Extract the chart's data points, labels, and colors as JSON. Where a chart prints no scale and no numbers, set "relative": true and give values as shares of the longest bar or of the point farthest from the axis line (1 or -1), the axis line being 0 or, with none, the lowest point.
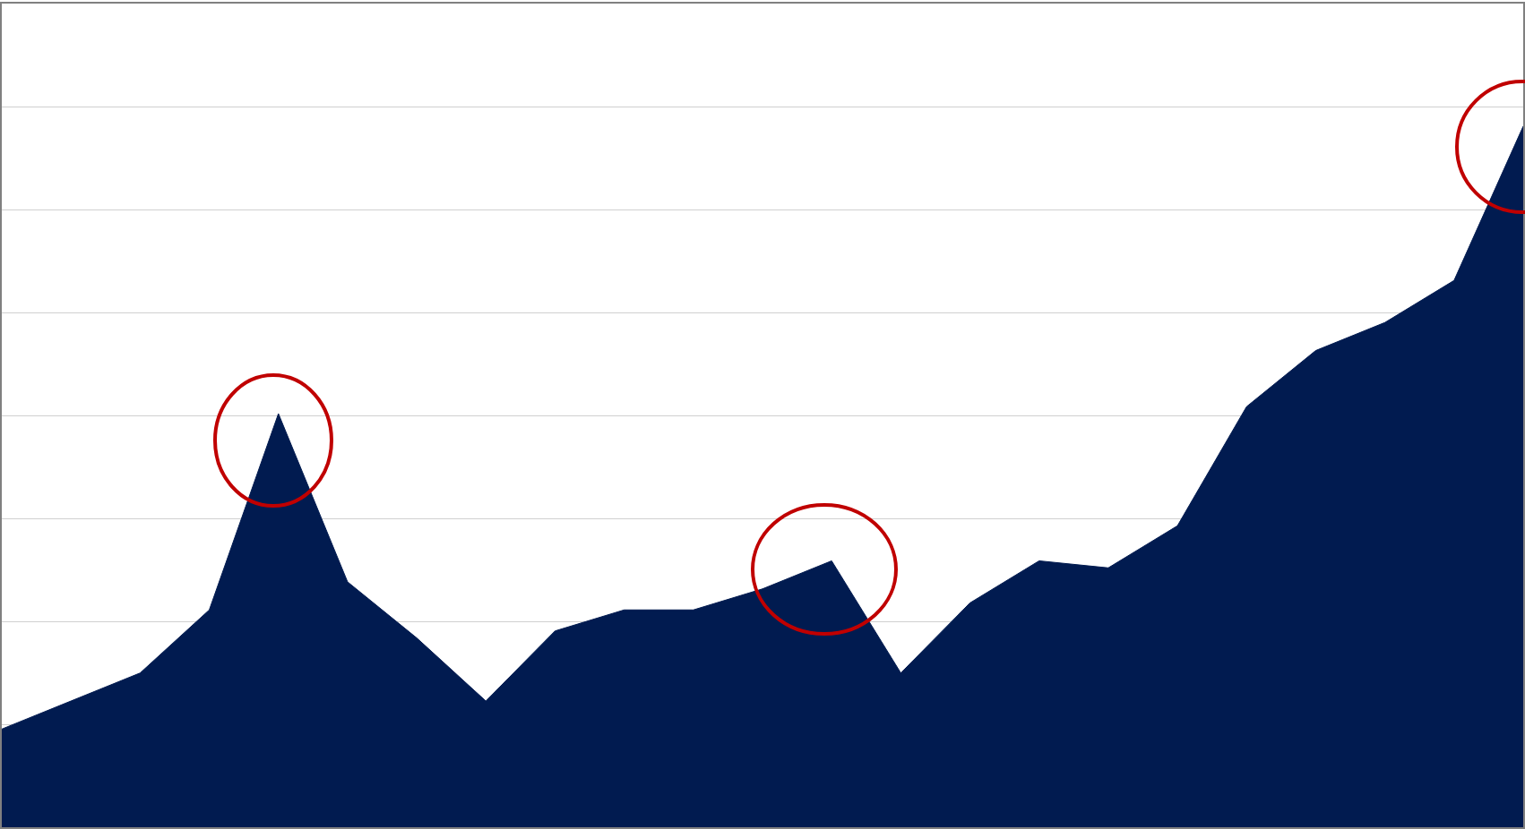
{
  "chart_data": {
    "type": "area",
    "relative": true,
    "grid": "y",
    "color": "#011b50",
    "categories": [
      null,
      null,
      null,
      null,
      null,
      null,
      null,
      null,
      null,
      null,
      null,
      null,
      null,
      null,
      null,
      null,
      null,
      null,
      null,
      null,
      null,
      null,
      null
    ],
    "values": [
      0.14,
      0.18,
      0.22,
      0.31,
      0.59,
      0.35,
      0.27,
      0.18,
      0.28,
      0.31,
      0.31,
      0.34,
      0.38,
      0.22,
      0.32,
      0.38,
      0.37,
      0.43,
      0.6,
      0.68,
      0.72,
      0.78,
      1
    ]
  }
}
